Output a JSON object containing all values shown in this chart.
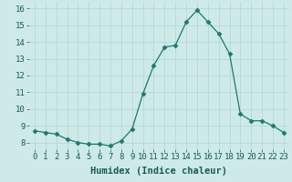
{
  "x": [
    0,
    1,
    2,
    3,
    4,
    5,
    6,
    7,
    8,
    9,
    10,
    11,
    12,
    13,
    14,
    15,
    16,
    17,
    18,
    19,
    20,
    21,
    22,
    23
  ],
  "y": [
    8.7,
    8.6,
    8.5,
    8.2,
    8.0,
    7.9,
    7.9,
    7.8,
    8.1,
    8.8,
    10.9,
    12.6,
    13.7,
    13.8,
    15.2,
    15.9,
    15.2,
    14.5,
    13.3,
    9.7,
    9.3,
    9.3,
    9.0,
    8.6
  ],
  "line_color": "#1a7a6e",
  "marker": "D",
  "marker_size": 2.5,
  "bg_color": "#ceeae8",
  "grid_color": "#b0d5d2",
  "xlabel": "Humidex (Indice chaleur)",
  "ylim": [
    7.6,
    16.4
  ],
  "xlim": [
    -0.5,
    23.5
  ],
  "yticks": [
    8,
    9,
    10,
    11,
    12,
    13,
    14,
    15,
    16
  ],
  "xticks": [
    0,
    1,
    2,
    3,
    4,
    5,
    6,
    7,
    8,
    9,
    10,
    11,
    12,
    13,
    14,
    15,
    16,
    17,
    18,
    19,
    20,
    21,
    22,
    23
  ],
  "label_fontsize": 7.5,
  "tick_fontsize": 6.5
}
